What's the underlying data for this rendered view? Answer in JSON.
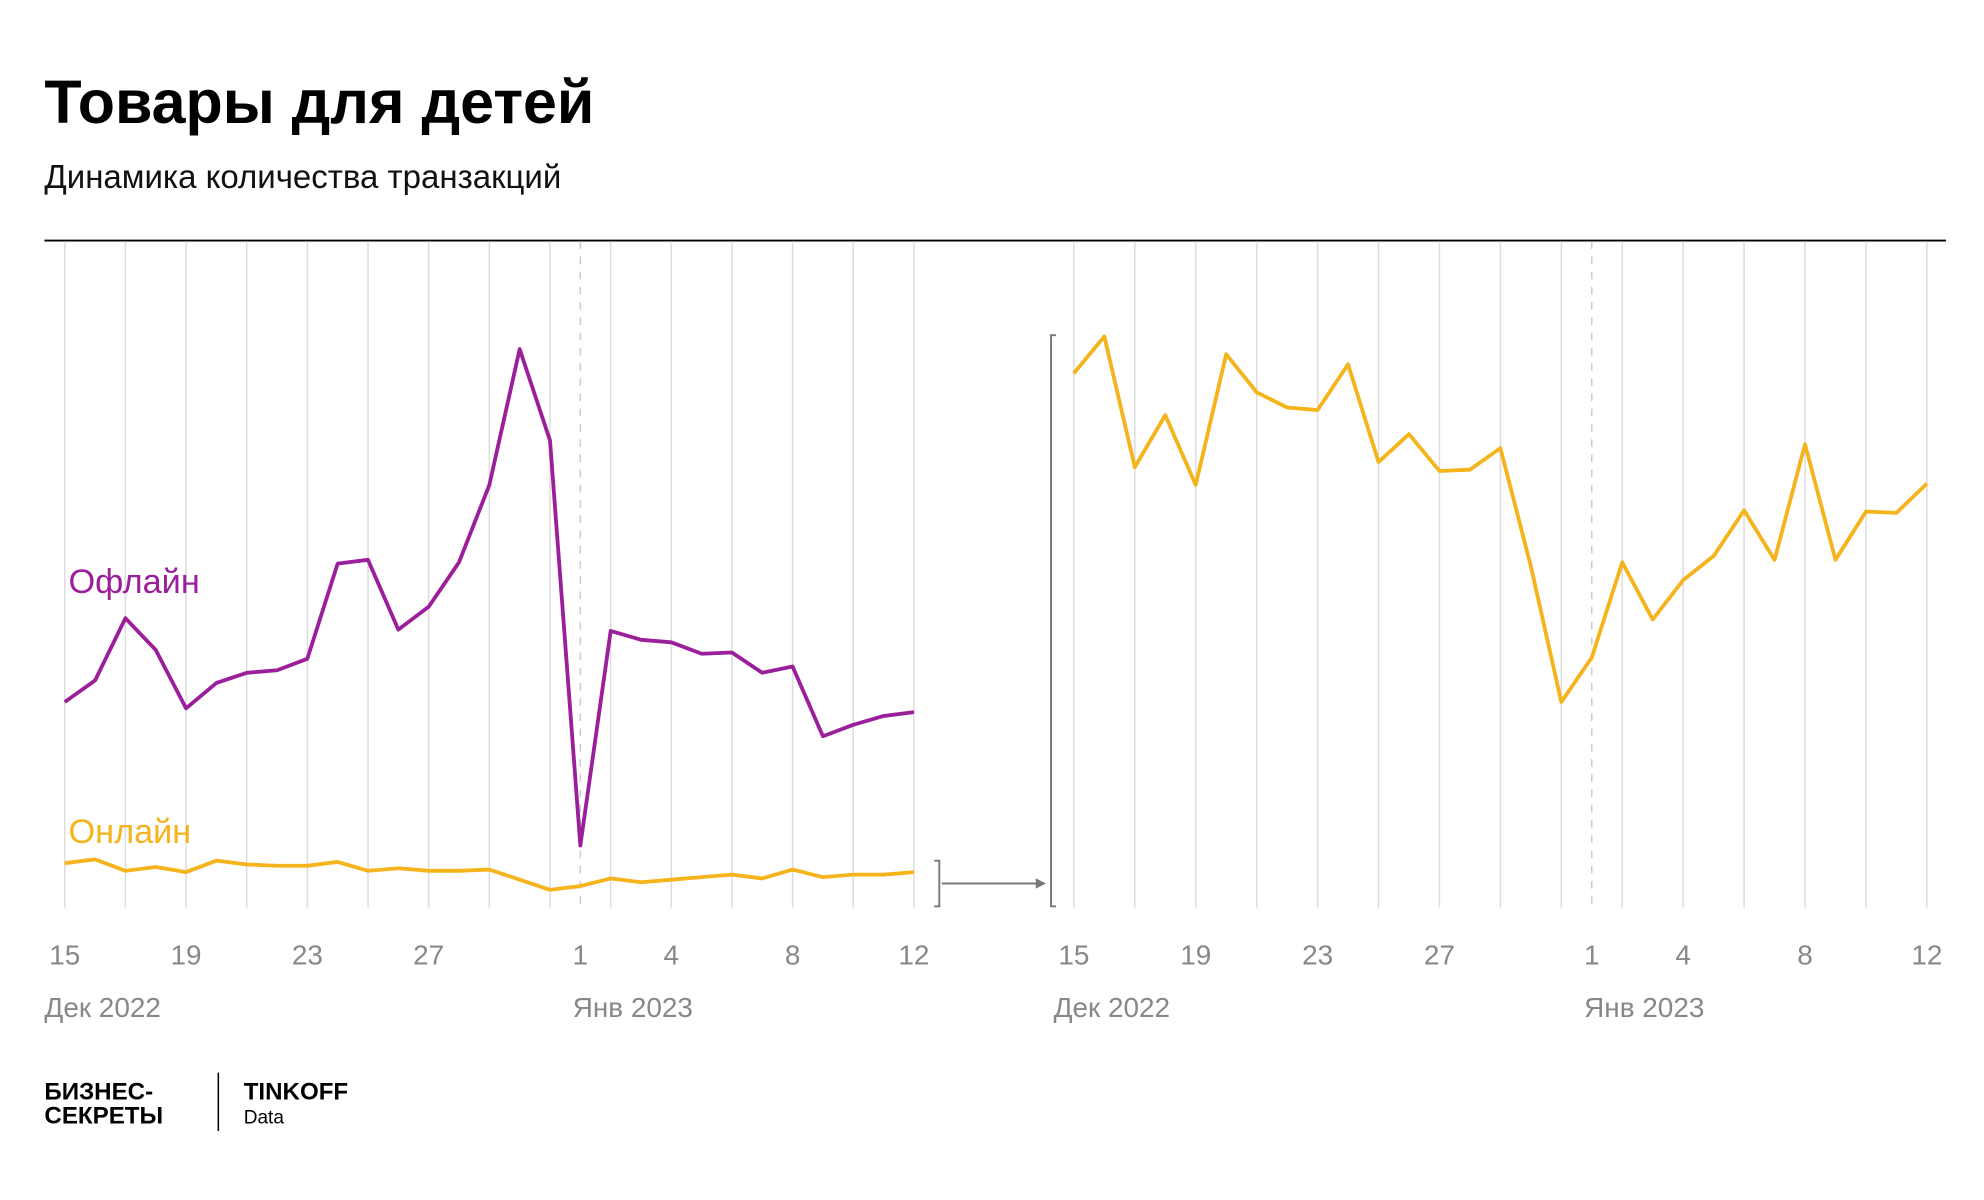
{
  "header": {
    "title": "Товары для детей",
    "subtitle": "Динамика количества транзакций"
  },
  "footer": {
    "brand_line1": "БИЗНЕС-",
    "brand_line2": "СЕКРЕТЫ",
    "partner": "TINKOFF",
    "partner_sub": "Data"
  },
  "chart_data": [
    {
      "type": "line",
      "categories": [
        "15",
        null,
        null,
        null,
        "19",
        null,
        null,
        null,
        "23",
        null,
        null,
        null,
        "27",
        null,
        null,
        null,
        null,
        "1",
        null,
        null,
        "4",
        null,
        null,
        null,
        "8",
        null,
        null,
        null,
        "12"
      ],
      "month_labels": [
        "Дек 2022",
        "Янв 2023"
      ],
      "ylim": [
        0,
        525
      ],
      "series": [
        {
          "name": "Офлайн",
          "color": "#9b1f9a",
          "values": [
            162,
            179,
            228,
            203,
            157,
            177,
            185,
            187,
            196,
            271,
            274,
            219,
            237,
            272,
            333,
            440,
            368,
            49,
            218,
            211,
            209,
            200,
            201,
            185,
            190,
            135,
            144,
            151,
            154
          ]
        },
        {
          "name": "Онлайн",
          "color": "#f5b31c",
          "values": [
            35,
            38,
            29,
            32,
            28,
            37,
            34,
            33,
            33,
            36,
            29,
            31,
            29,
            29,
            30,
            22,
            14,
            17,
            23,
            20,
            22,
            24,
            26,
            23,
            30,
            24,
            26,
            26,
            28
          ]
        }
      ]
    },
    {
      "type": "line",
      "categories": [
        "15",
        null,
        null,
        null,
        "19",
        null,
        null,
        null,
        "23",
        null,
        null,
        null,
        "27",
        null,
        null,
        null,
        null,
        "1",
        null,
        null,
        "4",
        null,
        null,
        null,
        "8",
        null,
        null,
        null,
        "12"
      ],
      "month_labels": [
        "Дек 2022",
        "Янв 2023"
      ],
      "ylim": [
        0,
        525
      ],
      "series": [
        {
          "name": "Онлайн",
          "color": "#f5b31c",
          "values": [
            421,
            450,
            347,
            388,
            333,
            436,
            406,
            394,
            392,
            428,
            351,
            373,
            344,
            345,
            362,
            269,
            162,
            197,
            272,
            227,
            258,
            277,
            313,
            274,
            365,
            274,
            312,
            311,
            334
          ]
        }
      ]
    }
  ]
}
